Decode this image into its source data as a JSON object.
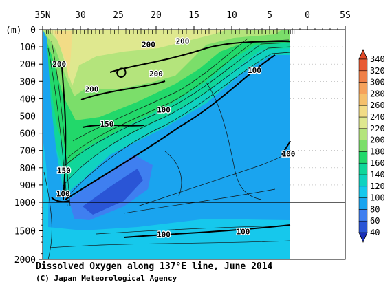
{
  "chart_data": {
    "type": "heatmap",
    "title": "Dissolved Oxygen along 137°E line, June 2014",
    "credit": "(C) Japan Meteorological Agency",
    "y_unit": "(m)",
    "x_ticks": [
      "35N",
      "30",
      "25",
      "20",
      "15",
      "10",
      "5",
      "0",
      "5S"
    ],
    "x_tick_values": [
      35,
      30,
      25,
      20,
      15,
      10,
      5,
      0,
      -5
    ],
    "xlim": [
      35,
      -5
    ],
    "y_ticks_upper": [
      "0",
      "100",
      "200",
      "300",
      "400",
      "500",
      "600",
      "700",
      "800",
      "900",
      "1000"
    ],
    "y_ticks_lower": [
      "1500",
      "2000"
    ],
    "y_split": 1000,
    "ylim": [
      0,
      2000
    ],
    "colorbar": {
      "levels": [
        40,
        60,
        80,
        100,
        120,
        140,
        160,
        180,
        200,
        220,
        240,
        260,
        280,
        300,
        320,
        340
      ],
      "colors": [
        "#2a55d6",
        "#3f7ff0",
        "#1aa4ef",
        "#16c8ec",
        "#10d2c0",
        "#10d69a",
        "#22d86a",
        "#7bde6a",
        "#b4e47c",
        "#dfe88f",
        "#f2dc86",
        "#f5c06c",
        "#f5a25c",
        "#f08048",
        "#e85a33",
        "#d8341e"
      ],
      "under_color": "#1a2fb8",
      "over_color": "#e24a28"
    },
    "contour_labels": [
      {
        "text": "200",
        "lat": 32.8,
        "depth": 200
      },
      {
        "text": "200",
        "lat": 28.5,
        "depth": 345
      },
      {
        "text": "200",
        "lat": 21.0,
        "depth": 85
      },
      {
        "text": "200",
        "lat": 16.5,
        "depth": 65
      },
      {
        "text": "200",
        "lat": 20.0,
        "depth": 255
      },
      {
        "text": "150",
        "lat": 26.5,
        "depth": 545
      },
      {
        "text": "150",
        "lat": 32.2,
        "depth": 815
      },
      {
        "text": "100",
        "lat": 32.3,
        "depth": 950
      },
      {
        "text": "100",
        "lat": 19.0,
        "depth": 465
      },
      {
        "text": "100",
        "lat": 7.0,
        "depth": 235
      },
      {
        "text": "100",
        "lat": 2.5,
        "depth": 720
      },
      {
        "text": "100",
        "lat": 19.0,
        "depth": 1560
      },
      {
        "text": "100",
        "lat": 8.5,
        "depth": 1510
      }
    ]
  }
}
